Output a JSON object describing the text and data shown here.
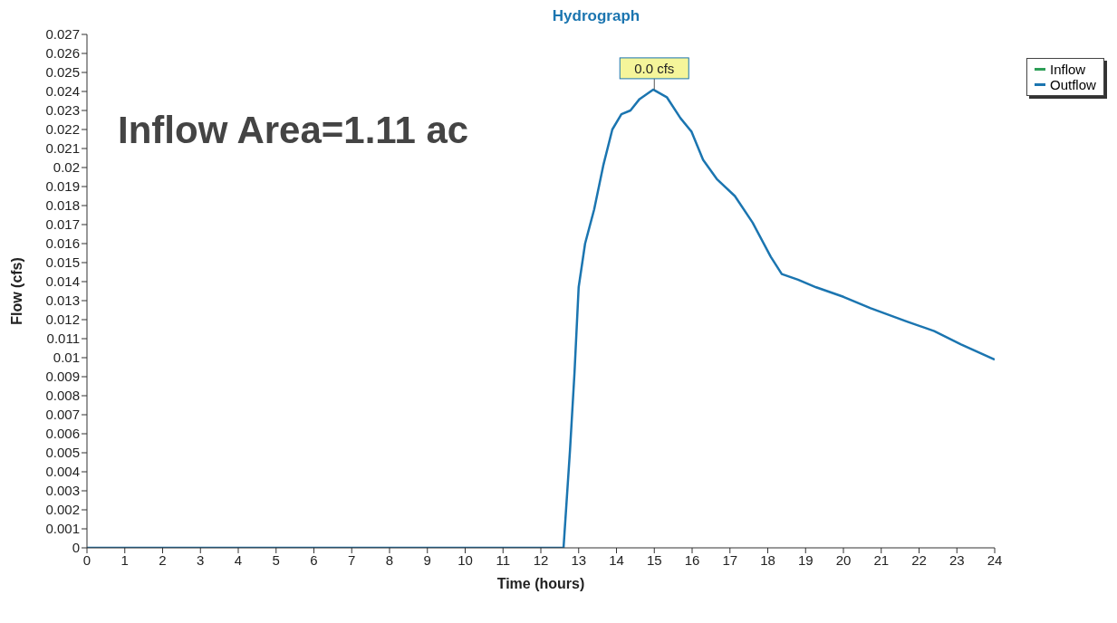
{
  "chart_data": {
    "type": "line",
    "title": "Hydrograph",
    "xlabel": "Time (hours)",
    "ylabel": "Flow (cfs)",
    "x": [
      0,
      12.6,
      12.77,
      12.89,
      13.0,
      13.17,
      13.41,
      13.65,
      13.89,
      14.13,
      14.37,
      14.61,
      14.97,
      15.33,
      15.69,
      15.98,
      16.29,
      16.65,
      17.13,
      17.6,
      18.08,
      18.37,
      18.8,
      19.28,
      20.0,
      20.72,
      21.68,
      22.4,
      23.11,
      24
    ],
    "series": [
      {
        "name": "Inflow",
        "color": "#2e9e57",
        "values": [
          null,
          null,
          null,
          null,
          null,
          null,
          null,
          null,
          null,
          null,
          null,
          null,
          null,
          null,
          null,
          null,
          null,
          null,
          null,
          null,
          null,
          null,
          null,
          null,
          null,
          null,
          null,
          null,
          null,
          null
        ]
      },
      {
        "name": "Outflow",
        "color": "#1b75b0",
        "values": [
          0,
          0,
          0.0051,
          0.0092,
          0.0137,
          0.016,
          0.0178,
          0.0201,
          0.022,
          0.0228,
          0.023,
          0.0236,
          0.0241,
          0.0237,
          0.0226,
          0.0219,
          0.0204,
          0.0194,
          0.0185,
          0.0171,
          0.0153,
          0.0144,
          0.0141,
          0.0137,
          0.0132,
          0.0126,
          0.0119,
          0.0114,
          0.0107,
          0.0099
        ]
      }
    ],
    "xlim": [
      0,
      24
    ],
    "xticks": [
      0,
      1,
      2,
      3,
      4,
      5,
      6,
      7,
      8,
      9,
      10,
      11,
      12,
      13,
      14,
      15,
      16,
      17,
      18,
      19,
      20,
      21,
      22,
      23,
      24
    ],
    "ylim": [
      0,
      0.027
    ],
    "yticks": [
      0,
      0.001,
      0.002,
      0.003,
      0.004,
      0.005,
      0.006,
      0.007,
      0.008,
      0.009,
      0.01,
      0.011,
      0.012,
      0.013,
      0.014,
      0.015,
      0.016,
      0.017,
      0.018,
      0.019,
      0.02,
      0.021,
      0.022,
      0.023,
      0.024,
      0.025,
      0.026,
      0.027
    ],
    "grid": false,
    "legend": "top right",
    "marker": "none",
    "line_style": "solid",
    "annotations": [
      "Inflow Area=1.11 ac",
      {
        "text": "0.0 cfs",
        "x": 15,
        "y": 0.0241
      }
    ]
  }
}
